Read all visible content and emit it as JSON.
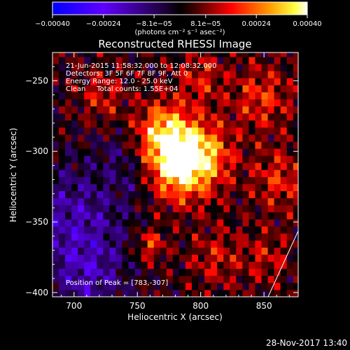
{
  "chart_data": {
    "type": "heatmap",
    "title": "Reconstructed RHESSI Image",
    "xlabel": "Heliocentric X (arcsec)",
    "ylabel": "Heliocentric Y (arcsec)",
    "xlim": [
      683,
      877
    ],
    "ylim": [
      -403,
      -230
    ],
    "x_ticks": [
      700,
      750,
      800,
      850
    ],
    "y_ticks": [
      -250,
      -300,
      -350,
      -400
    ],
    "x_tick_labels": [
      "700",
      "750",
      "800",
      "850"
    ],
    "y_tick_labels": [
      "−250",
      "−300",
      "−350",
      "−400"
    ],
    "colorbar": {
      "range": [
        -0.0004,
        0.0004
      ],
      "tick_values": [
        -0.0004,
        -0.00024,
        -8.1e-05,
        8.1e-05,
        0.00024,
        0.0004
      ],
      "tick_labels": [
        "−0.00040",
        "−0.00024",
        "−8.1e−05",
        "8.1e−05",
        "0.00024",
        "0.00040"
      ],
      "units": "(photons cm⁻² s⁻¹ asec⁻²)",
      "colors": [
        "#0000ff",
        "#8000ff",
        "#000000",
        "#ff0000",
        "#ffff00",
        "#ffffff"
      ]
    },
    "annotations": [
      "21-Jun-2015 11:58:32.000 to 12:08:32.000",
      "Detectors: 3F 5F 6F 7F 8F 9F, Att 0",
      "Energy Range: 12.0 - 25.0 keV",
      "Clean     Total counts: 1.55E+04"
    ],
    "peak_label": "Position of Peak = [783,-307]",
    "peak": [
      783,
      -307
    ],
    "sources": [
      {
        "x": 783,
        "y": -307,
        "amp": 0.00041,
        "sigma": 18
      },
      {
        "x": 770,
        "y": -283,
        "amp": 0.0002,
        "sigma": 14
      },
      {
        "x": 805,
        "y": -302,
        "amp": 0.00016,
        "sigma": 16
      },
      {
        "x": 760,
        "y": -366,
        "amp": 0.00017,
        "sigma": 8
      },
      {
        "x": 722,
        "y": -261,
        "amp": 0.00012,
        "sigma": 12
      },
      {
        "x": 800,
        "y": -248,
        "amp": 0.00012,
        "sigma": 13
      },
      {
        "x": 848,
        "y": -262,
        "amp": 0.00015,
        "sigma": 16
      },
      {
        "x": 862,
        "y": -320,
        "amp": 0.00014,
        "sigma": 15
      },
      {
        "x": 812,
        "y": -375,
        "amp": 0.00011,
        "sigma": 14
      },
      {
        "x": 852,
        "y": -375,
        "amp": 0.0001,
        "sigma": 13
      },
      {
        "x": 700,
        "y": -350,
        "amp": -0.00017,
        "sigma": 30
      },
      {
        "x": 712,
        "y": -392,
        "amp": -0.00012,
        "sigma": 20
      },
      {
        "x": 748,
        "y": -318,
        "amp": -7e-05,
        "sigma": 12
      },
      {
        "x": 733,
        "y": -300,
        "amp": -6e-05,
        "sigma": 10
      }
    ],
    "grid": false
  },
  "footer": {
    "date": "28-Nov-2017 13:40"
  }
}
